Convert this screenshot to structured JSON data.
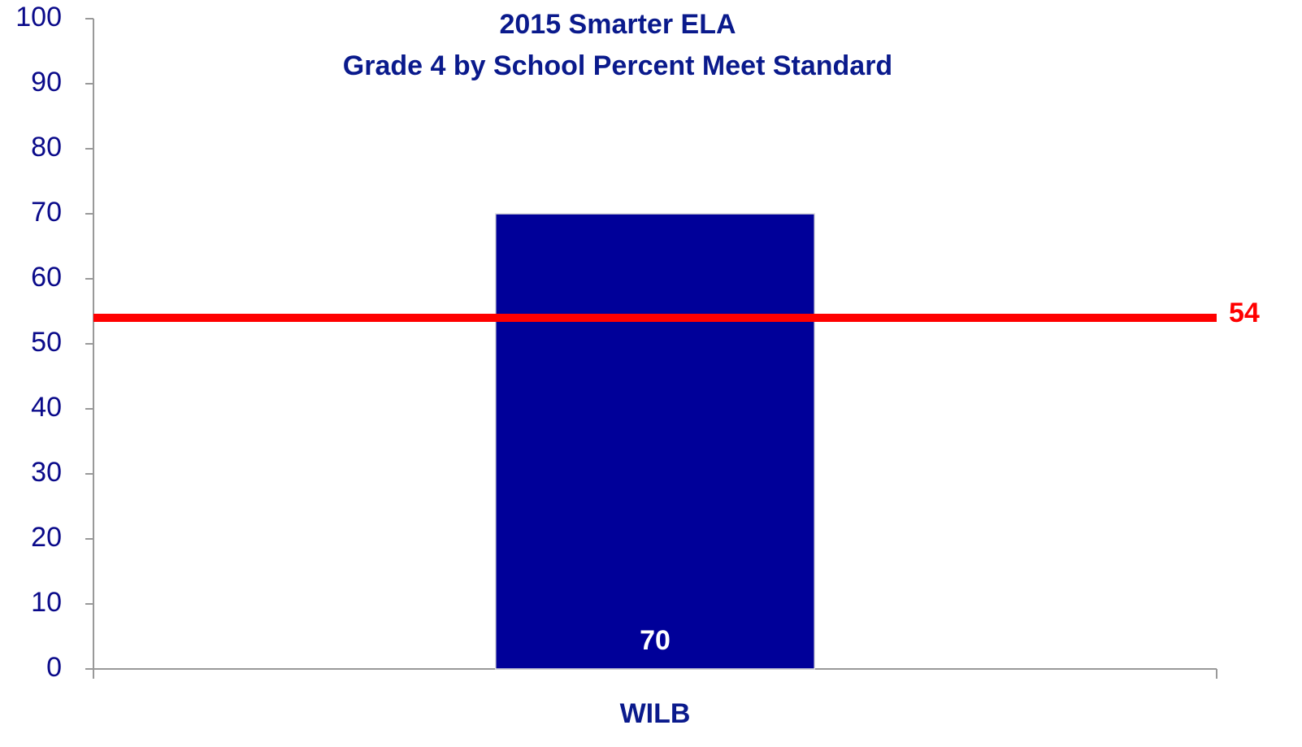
{
  "chart_data": {
    "type": "bar",
    "title": "2015 Smarter ELA",
    "subtitle": "Grade 4 by School Percent Meet Standard",
    "categories": [
      "WILB"
    ],
    "values": [
      70
    ],
    "color": "#000099",
    "ylim": [
      0,
      100
    ],
    "yticks": [
      0,
      10,
      20,
      30,
      40,
      50,
      60,
      70,
      80,
      90,
      100
    ],
    "grid": false,
    "reference_line": {
      "value": 54,
      "color": "#ff0000"
    }
  }
}
